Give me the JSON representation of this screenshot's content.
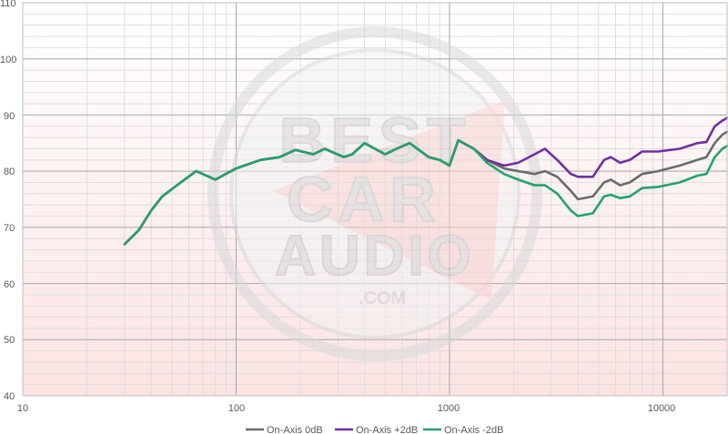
{
  "chart_data": {
    "type": "line",
    "title": "",
    "xlabel": "",
    "ylabel": "",
    "x_scale": "log",
    "xlim": [
      10,
      20000
    ],
    "ylim": [
      40,
      110
    ],
    "x_ticks": [
      "10",
      "100",
      "1000",
      "10000"
    ],
    "y_ticks": [
      "40",
      "50",
      "60",
      "70",
      "80",
      "90",
      "100",
      "110"
    ],
    "grid": true,
    "legend_position": "bottom",
    "watermark_text": [
      "BEST",
      "CAR",
      "AUDIO",
      ".COM"
    ],
    "series": [
      {
        "name": "On-Axis 0dB",
        "color": "#6b6b6b",
        "points": [
          [
            30,
            67
          ],
          [
            35,
            69.5
          ],
          [
            40,
            73
          ],
          [
            45,
            75.5
          ],
          [
            55,
            78
          ],
          [
            65,
            80
          ],
          [
            80,
            78.5
          ],
          [
            100,
            80.5
          ],
          [
            130,
            82
          ],
          [
            160,
            82.5
          ],
          [
            190,
            83.8
          ],
          [
            230,
            83
          ],
          [
            260,
            84
          ],
          [
            320,
            82.5
          ],
          [
            350,
            83
          ],
          [
            400,
            85
          ],
          [
            500,
            83
          ],
          [
            550,
            83.8
          ],
          [
            650,
            85
          ],
          [
            800,
            82.5
          ],
          [
            900,
            82
          ],
          [
            1000,
            81
          ],
          [
            1100,
            85.5
          ],
          [
            1300,
            84
          ],
          [
            1500,
            82
          ],
          [
            1800,
            80.5
          ],
          [
            2100,
            80
          ],
          [
            2500,
            79.5
          ],
          [
            2800,
            80
          ],
          [
            3200,
            79
          ],
          [
            3700,
            76.5
          ],
          [
            4000,
            75
          ],
          [
            4700,
            75.5
          ],
          [
            5300,
            78
          ],
          [
            5700,
            78.5
          ],
          [
            6300,
            77.5
          ],
          [
            7000,
            78
          ],
          [
            8000,
            79.5
          ],
          [
            9500,
            80
          ],
          [
            12000,
            81
          ],
          [
            14500,
            82
          ],
          [
            16000,
            82.5
          ],
          [
            17500,
            85
          ],
          [
            19000,
            86.5
          ],
          [
            20000,
            87
          ]
        ]
      },
      {
        "name": "On-Axis +2dB",
        "color": "#7030a0",
        "points": [
          [
            30,
            67
          ],
          [
            35,
            69.5
          ],
          [
            40,
            73
          ],
          [
            45,
            75.5
          ],
          [
            55,
            78
          ],
          [
            65,
            80
          ],
          [
            80,
            78.5
          ],
          [
            100,
            80.5
          ],
          [
            130,
            82
          ],
          [
            160,
            82.5
          ],
          [
            190,
            83.8
          ],
          [
            230,
            83
          ],
          [
            260,
            84
          ],
          [
            320,
            82.5
          ],
          [
            350,
            83
          ],
          [
            400,
            85
          ],
          [
            500,
            83
          ],
          [
            550,
            83.8
          ],
          [
            650,
            85
          ],
          [
            800,
            82.5
          ],
          [
            900,
            82
          ],
          [
            1000,
            81
          ],
          [
            1100,
            85.5
          ],
          [
            1300,
            84
          ],
          [
            1500,
            82
          ],
          [
            1800,
            81
          ],
          [
            2100,
            81.5
          ],
          [
            2500,
            83
          ],
          [
            2800,
            84
          ],
          [
            3200,
            82
          ],
          [
            3700,
            79.5
          ],
          [
            4000,
            79
          ],
          [
            4700,
            79
          ],
          [
            5300,
            82
          ],
          [
            5700,
            82.5
          ],
          [
            6300,
            81.5
          ],
          [
            7000,
            82
          ],
          [
            8000,
            83.5
          ],
          [
            9500,
            83.5
          ],
          [
            12000,
            84
          ],
          [
            14500,
            85
          ],
          [
            16000,
            85.2
          ],
          [
            17500,
            88
          ],
          [
            19000,
            89
          ],
          [
            20000,
            89.5
          ]
        ]
      },
      {
        "name": "On-Axis -2dB",
        "color": "#23a36a",
        "points": [
          [
            30,
            67
          ],
          [
            35,
            69.5
          ],
          [
            40,
            73
          ],
          [
            45,
            75.5
          ],
          [
            55,
            78
          ],
          [
            65,
            80
          ],
          [
            80,
            78.5
          ],
          [
            100,
            80.5
          ],
          [
            130,
            82
          ],
          [
            160,
            82.5
          ],
          [
            190,
            83.8
          ],
          [
            230,
            83
          ],
          [
            260,
            84
          ],
          [
            320,
            82.5
          ],
          [
            350,
            83
          ],
          [
            400,
            85
          ],
          [
            500,
            83
          ],
          [
            550,
            83.8
          ],
          [
            650,
            85
          ],
          [
            800,
            82.5
          ],
          [
            900,
            82
          ],
          [
            1000,
            81
          ],
          [
            1100,
            85.5
          ],
          [
            1300,
            84
          ],
          [
            1500,
            81.5
          ],
          [
            1800,
            79.5
          ],
          [
            2100,
            78.5
          ],
          [
            2500,
            77.5
          ],
          [
            2800,
            77.5
          ],
          [
            3200,
            76
          ],
          [
            3700,
            73
          ],
          [
            4000,
            72
          ],
          [
            4700,
            72.5
          ],
          [
            5300,
            75.5
          ],
          [
            5700,
            75.8
          ],
          [
            6300,
            75.2
          ],
          [
            7000,
            75.5
          ],
          [
            8000,
            77
          ],
          [
            9500,
            77.2
          ],
          [
            12000,
            78
          ],
          [
            14500,
            79.2
          ],
          [
            16000,
            79.5
          ],
          [
            17500,
            82.5
          ],
          [
            19000,
            84
          ],
          [
            20000,
            84.5
          ]
        ]
      }
    ]
  }
}
